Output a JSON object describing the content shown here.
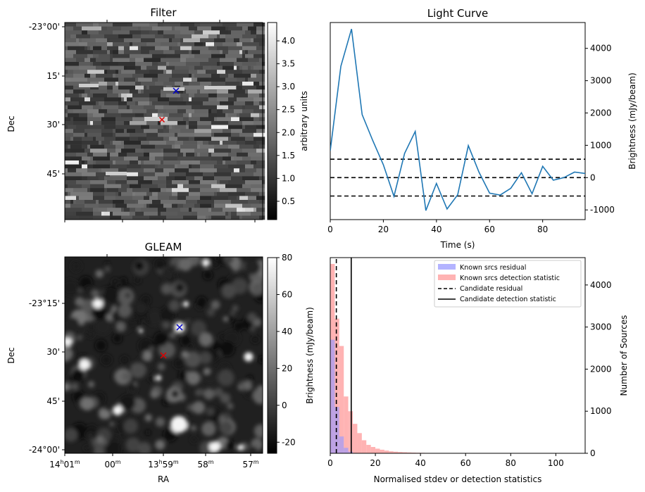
{
  "chart_data": [
    {
      "type": "heatmap",
      "title": "Filter",
      "ylabel": "Dec",
      "y_ticks": [
        "-23°00'",
        "15'",
        "30'",
        "45'"
      ],
      "colorbar": {
        "label": "arbitrary units",
        "range": [
          0.1,
          4.4
        ],
        "ticks": [
          "4.0",
          "3.5",
          "3.0",
          "2.5",
          "2.0",
          "1.5",
          "1.0",
          "0.5"
        ]
      },
      "markers": [
        {
          "color": "#0000cc",
          "shape": "x"
        },
        {
          "color": "#dd0000",
          "shape": "x"
        }
      ]
    },
    {
      "type": "line",
      "title": "Light Curve",
      "xlabel": "Time (s)",
      "ylabel": "Brightness (mJy/beam)",
      "xlim": [
        0,
        96
      ],
      "ylim": [
        -1300,
        4800
      ],
      "x_ticks": [
        0,
        20,
        40,
        60,
        80
      ],
      "y_ticks": [
        -1000,
        0,
        1000,
        2000,
        3000,
        4000
      ],
      "series": [
        {
          "color": "#1f77b4",
          "x": [
            0,
            4,
            8,
            12,
            16,
            20,
            24,
            28,
            32,
            36,
            40,
            44,
            48,
            52,
            56,
            60,
            64,
            68,
            72,
            76,
            80,
            84,
            88,
            92,
            96
          ],
          "y": [
            830,
            3450,
            4600,
            1950,
            1150,
            400,
            -580,
            750,
            1430,
            -1020,
            -180,
            -970,
            -530,
            990,
            170,
            -480,
            -540,
            -330,
            150,
            -500,
            350,
            -80,
            0,
            170,
            130
          ]
        }
      ],
      "hlines": [
        {
          "y": 570,
          "style": "dashed"
        },
        {
          "y": 0,
          "style": "dashed"
        },
        {
          "y": -570,
          "style": "dashed"
        }
      ]
    },
    {
      "type": "heatmap",
      "title": "GLEAM",
      "xlabel": "RA",
      "ylabel": "Dec",
      "x_ticks": [
        {
          "main": "14",
          "sup1": "h",
          "mid": "01",
          "sup2": "m"
        },
        {
          "main": "00",
          "sup1": "",
          "mid": "",
          "sup2": "m"
        },
        {
          "main": "13",
          "sup1": "h",
          "mid": "59",
          "sup2": "m"
        },
        {
          "main": "58",
          "sup1": "",
          "mid": "",
          "sup2": "m"
        },
        {
          "main": "57",
          "sup1": "",
          "mid": "",
          "sup2": "m"
        }
      ],
      "y_ticks": [
        "-23°15'",
        "30'",
        "45'",
        "-24°00'"
      ],
      "colorbar": {
        "label": "Brightness (mJy/beam)",
        "range": [
          -26,
          80
        ],
        "ticks": [
          "80",
          "60",
          "40",
          "20",
          "0",
          "-20"
        ]
      },
      "markers": [
        {
          "color": "#0000cc",
          "shape": "x"
        },
        {
          "color": "#dd0000",
          "shape": "x"
        }
      ]
    },
    {
      "type": "bar",
      "xlabel": "Normalised stdev or detection statistics",
      "ylabel": "Number of Sources",
      "xlim": [
        0,
        113
      ],
      "ylim": [
        0,
        4650
      ],
      "x_ticks": [
        0,
        20,
        40,
        60,
        80,
        100
      ],
      "y_ticks": [
        0,
        1000,
        2000,
        3000,
        4000
      ],
      "bin_width": 2,
      "series": [
        {
          "name": "Known srcs residual",
          "color": "#9999ff",
          "values": [
            2700,
            1100,
            400,
            130,
            40,
            10,
            3,
            1
          ]
        },
        {
          "name": "Known srcs detection statistic",
          "color": "#ff9999",
          "values": [
            4500,
            3200,
            2550,
            1350,
            1000,
            700,
            480,
            310,
            200,
            150,
            110,
            85,
            65,
            48,
            38,
            30,
            25,
            20,
            16,
            13,
            11,
            9,
            8,
            7,
            6,
            5,
            5,
            4,
            4,
            3,
            3,
            3,
            2,
            2,
            2,
            2,
            2,
            2,
            1,
            1,
            1,
            1,
            1,
            1,
            1,
            1,
            1,
            1,
            1,
            1,
            1,
            1,
            1,
            1,
            1
          ]
        }
      ],
      "vlines": [
        {
          "name": "Candidate residual",
          "x": 2.7,
          "style": "dashed"
        },
        {
          "name": "Candidate detection statistic",
          "x": 9.3,
          "style": "solid"
        }
      ]
    }
  ]
}
